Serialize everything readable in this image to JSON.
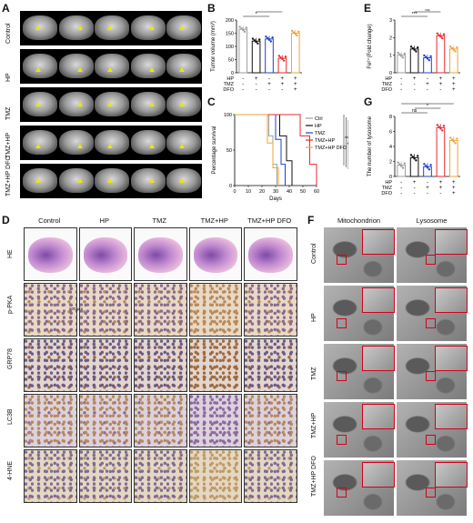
{
  "panels": {
    "A": "A",
    "B": "B",
    "C": "C",
    "D": "D",
    "E": "E",
    "F": "F",
    "G": "G"
  },
  "panelA": {
    "rows": [
      "Control",
      "HP",
      "TMZ",
      "TMZ+HP",
      "TMZ+HP DFO"
    ]
  },
  "panelB": {
    "ylabel": "Tumor volume (mm³)",
    "ticks": [
      "0",
      "50",
      "100",
      "150",
      "200"
    ],
    "sig": [
      "*",
      "***",
      "***",
      "***"
    ],
    "factors": [
      {
        "name": "HP",
        "values": [
          "-",
          "+",
          "-",
          "+",
          "+"
        ]
      },
      {
        "name": "TMZ",
        "values": [
          "-",
          "-",
          "+",
          "+",
          "+"
        ]
      },
      {
        "name": "DFO",
        "values": [
          "-",
          "-",
          "-",
          "-",
          "+"
        ]
      }
    ]
  },
  "panelC": {
    "ylabel": "Percentage survival",
    "xlabel": "Days",
    "yticks": [
      "0",
      "50",
      "100"
    ],
    "xticks": [
      "0",
      "10",
      "20",
      "30",
      "40",
      "50",
      "60"
    ],
    "legend": [
      "Ctrl",
      "HP",
      "TMZ",
      "TMZ+HP",
      "TMZ+HP DFO"
    ],
    "sig": [
      "**",
      "**",
      "*",
      "***",
      "***"
    ]
  },
  "panelD": {
    "cols": [
      "Control",
      "HP",
      "TMZ",
      "TMZ+HP",
      "TMZ+HP DFO"
    ],
    "rows": [
      "HE",
      "p-PKA",
      "GRP78",
      "LC3B",
      "4-HNE"
    ],
    "scale": "500 μm"
  },
  "panelE": {
    "ylabel": "Fe²⁺(Fold change)",
    "ticks": [
      "0",
      "1",
      "2",
      "3"
    ],
    "sig": [
      "***",
      "ns",
      "***",
      "***",
      "***"
    ],
    "factors": [
      {
        "name": "HP",
        "values": [
          "-",
          "+",
          "-",
          "+",
          "+"
        ]
      },
      {
        "name": "TMZ",
        "values": [
          "-",
          "-",
          "+",
          "+",
          "+"
        ]
      },
      {
        "name": "DFO",
        "values": [
          "-",
          "-",
          "-",
          "-",
          "+"
        ]
      }
    ]
  },
  "panelG": {
    "ylabel": "The number of lysosome",
    "ticks": [
      "0",
      "2",
      "4",
      "6",
      "8"
    ],
    "sig": [
      "ns",
      "*",
      "***",
      "***",
      "**"
    ],
    "factors": [
      {
        "name": "HP",
        "values": [
          "-",
          "+",
          "-",
          "+",
          "+"
        ]
      },
      {
        "name": "TMZ",
        "values": [
          "-",
          "-",
          "+",
          "+",
          "+"
        ]
      },
      {
        "name": "DFO",
        "values": [
          "-",
          "-",
          "-",
          "-",
          "+"
        ]
      }
    ]
  },
  "panelF": {
    "cols": [
      "Mitochondrion",
      "Lysosome"
    ],
    "rows": [
      "Control",
      "HP",
      "TMZ",
      "TMZ+HP",
      "TMZ+HP DFO"
    ]
  },
  "colors": {
    "ctrl": "#9e9e9e",
    "hp": "#111111",
    "tmz": "#1f3fd1",
    "tmzhp": "#e8292c",
    "dfo": "#f2a33a"
  },
  "chart_data": [
    {
      "type": "bar",
      "panel": "B",
      "ylabel": "Tumor volume (mm³)",
      "ylim": [
        0,
        200
      ],
      "categories": [
        "Control",
        "HP",
        "TMZ",
        "TMZ+HP",
        "TMZ+HP DFO"
      ],
      "values": [
        165,
        120,
        128,
        55,
        150
      ]
    },
    {
      "type": "line",
      "panel": "C",
      "ylabel": "Percentage survival",
      "xlabel": "Days",
      "xlim": [
        0,
        60
      ],
      "ylim": [
        0,
        100
      ],
      "series": [
        {
          "name": "Ctrl",
          "x": [
            0,
            22,
            25,
            28,
            31
          ],
          "y": [
            100,
            100,
            70,
            30,
            0
          ]
        },
        {
          "name": "HP",
          "x": [
            0,
            28,
            33,
            38,
            42
          ],
          "y": [
            100,
            100,
            70,
            35,
            0
          ]
        },
        {
          "name": "TMZ",
          "x": [
            0,
            26,
            30,
            34,
            37
          ],
          "y": [
            100,
            100,
            65,
            30,
            0
          ]
        },
        {
          "name": "TMZ+HP",
          "x": [
            0,
            40,
            48,
            55,
            60
          ],
          "y": [
            100,
            100,
            70,
            30,
            0
          ]
        },
        {
          "name": "TMZ+HP DFO",
          "x": [
            0,
            20,
            24,
            28,
            32
          ],
          "y": [
            100,
            100,
            60,
            25,
            0
          ]
        }
      ]
    },
    {
      "type": "bar",
      "panel": "E",
      "ylabel": "Fe²⁺(Fold change)",
      "ylim": [
        0,
        3
      ],
      "categories": [
        "Control",
        "HP",
        "TMZ",
        "TMZ+HP",
        "TMZ+HP DFO"
      ],
      "values": [
        1.0,
        1.35,
        0.85,
        2.1,
        1.35
      ]
    },
    {
      "type": "bar",
      "panel": "G",
      "ylabel": "The number of lysosome",
      "ylim": [
        0,
        8
      ],
      "categories": [
        "Control",
        "HP",
        "TMZ",
        "TMZ+HP",
        "TMZ+HP DFO"
      ],
      "values": [
        1.5,
        2.5,
        1.3,
        6.5,
        4.8
      ]
    }
  ]
}
